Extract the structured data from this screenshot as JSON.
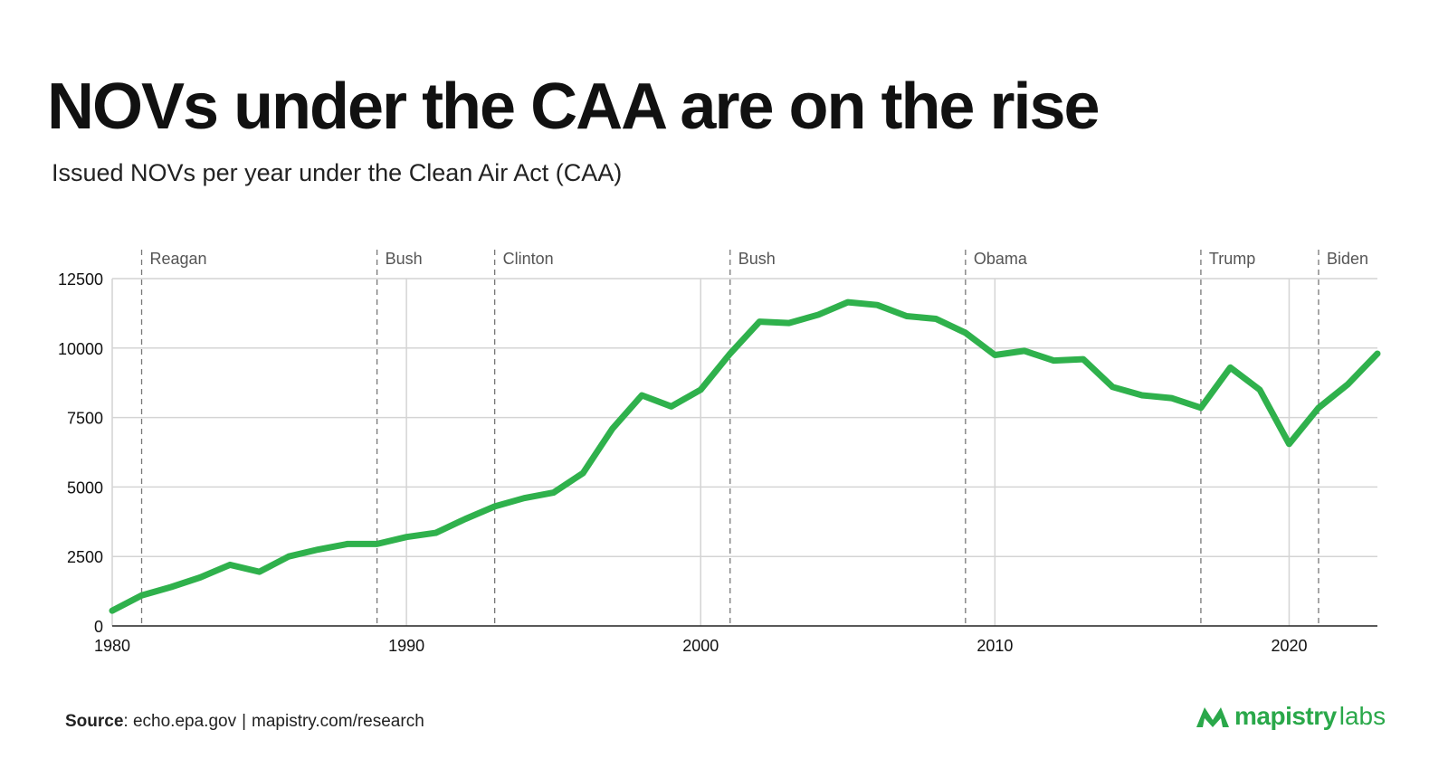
{
  "header": {
    "title": "NOVs under the CAA are on the rise",
    "subtitle": "Issued NOVs per year under the Clean Air Act (CAA)"
  },
  "footer": {
    "source_label": "Source",
    "source_text": ": echo.epa.gov",
    "separator": "|",
    "source_link": "mapistry.com/research",
    "brand_name": "mapistry",
    "brand_suffix": "labs",
    "brand_color": "#2aa84a"
  },
  "chart_data": {
    "type": "line",
    "title": "NOVs under the CAA are on the rise",
    "subtitle": "Issued NOVs per year under the Clean Air Act (CAA)",
    "xlabel": "",
    "ylabel": "",
    "xlim": [
      1980,
      2023
    ],
    "ylim": [
      0,
      12500
    ],
    "xticks": [
      1980,
      1990,
      2000,
      2010,
      2020
    ],
    "yticks": [
      0,
      2500,
      5000,
      7500,
      10000,
      12500
    ],
    "grid": true,
    "line_color": "#2fb14c",
    "x": [
      1980,
      1981,
      1982,
      1983,
      1984,
      1985,
      1986,
      1987,
      1988,
      1989,
      1990,
      1991,
      1992,
      1993,
      1994,
      1995,
      1996,
      1997,
      1998,
      1999,
      2000,
      2001,
      2002,
      2003,
      2004,
      2005,
      2006,
      2007,
      2008,
      2009,
      2010,
      2011,
      2012,
      2013,
      2014,
      2015,
      2016,
      2017,
      2018,
      2019,
      2020,
      2021,
      2022,
      2023
    ],
    "series": [
      {
        "values": [
          550,
          1100,
          1400,
          1750,
          2200,
          1950,
          2500,
          2750,
          2950,
          2950,
          3200,
          3350,
          3850,
          4300,
          4600,
          4800,
          5500,
          7100,
          8300,
          7900,
          8500,
          9800,
          10950,
          10900,
          11200,
          11650,
          11550,
          11150,
          11050,
          10550,
          9750,
          9900,
          9550,
          9600,
          8600,
          8300,
          8200,
          7850,
          9300,
          8500,
          6550,
          7850,
          8700,
          9800
        ]
      }
    ],
    "annotations": [
      {
        "x": 1981,
        "label": "Reagan"
      },
      {
        "x": 1989,
        "label": "Bush"
      },
      {
        "x": 1993,
        "label": "Clinton"
      },
      {
        "x": 2001,
        "label": "Bush"
      },
      {
        "x": 2009,
        "label": "Obama"
      },
      {
        "x": 2017,
        "label": "Trump"
      },
      {
        "x": 2021,
        "label": "Biden"
      }
    ]
  }
}
